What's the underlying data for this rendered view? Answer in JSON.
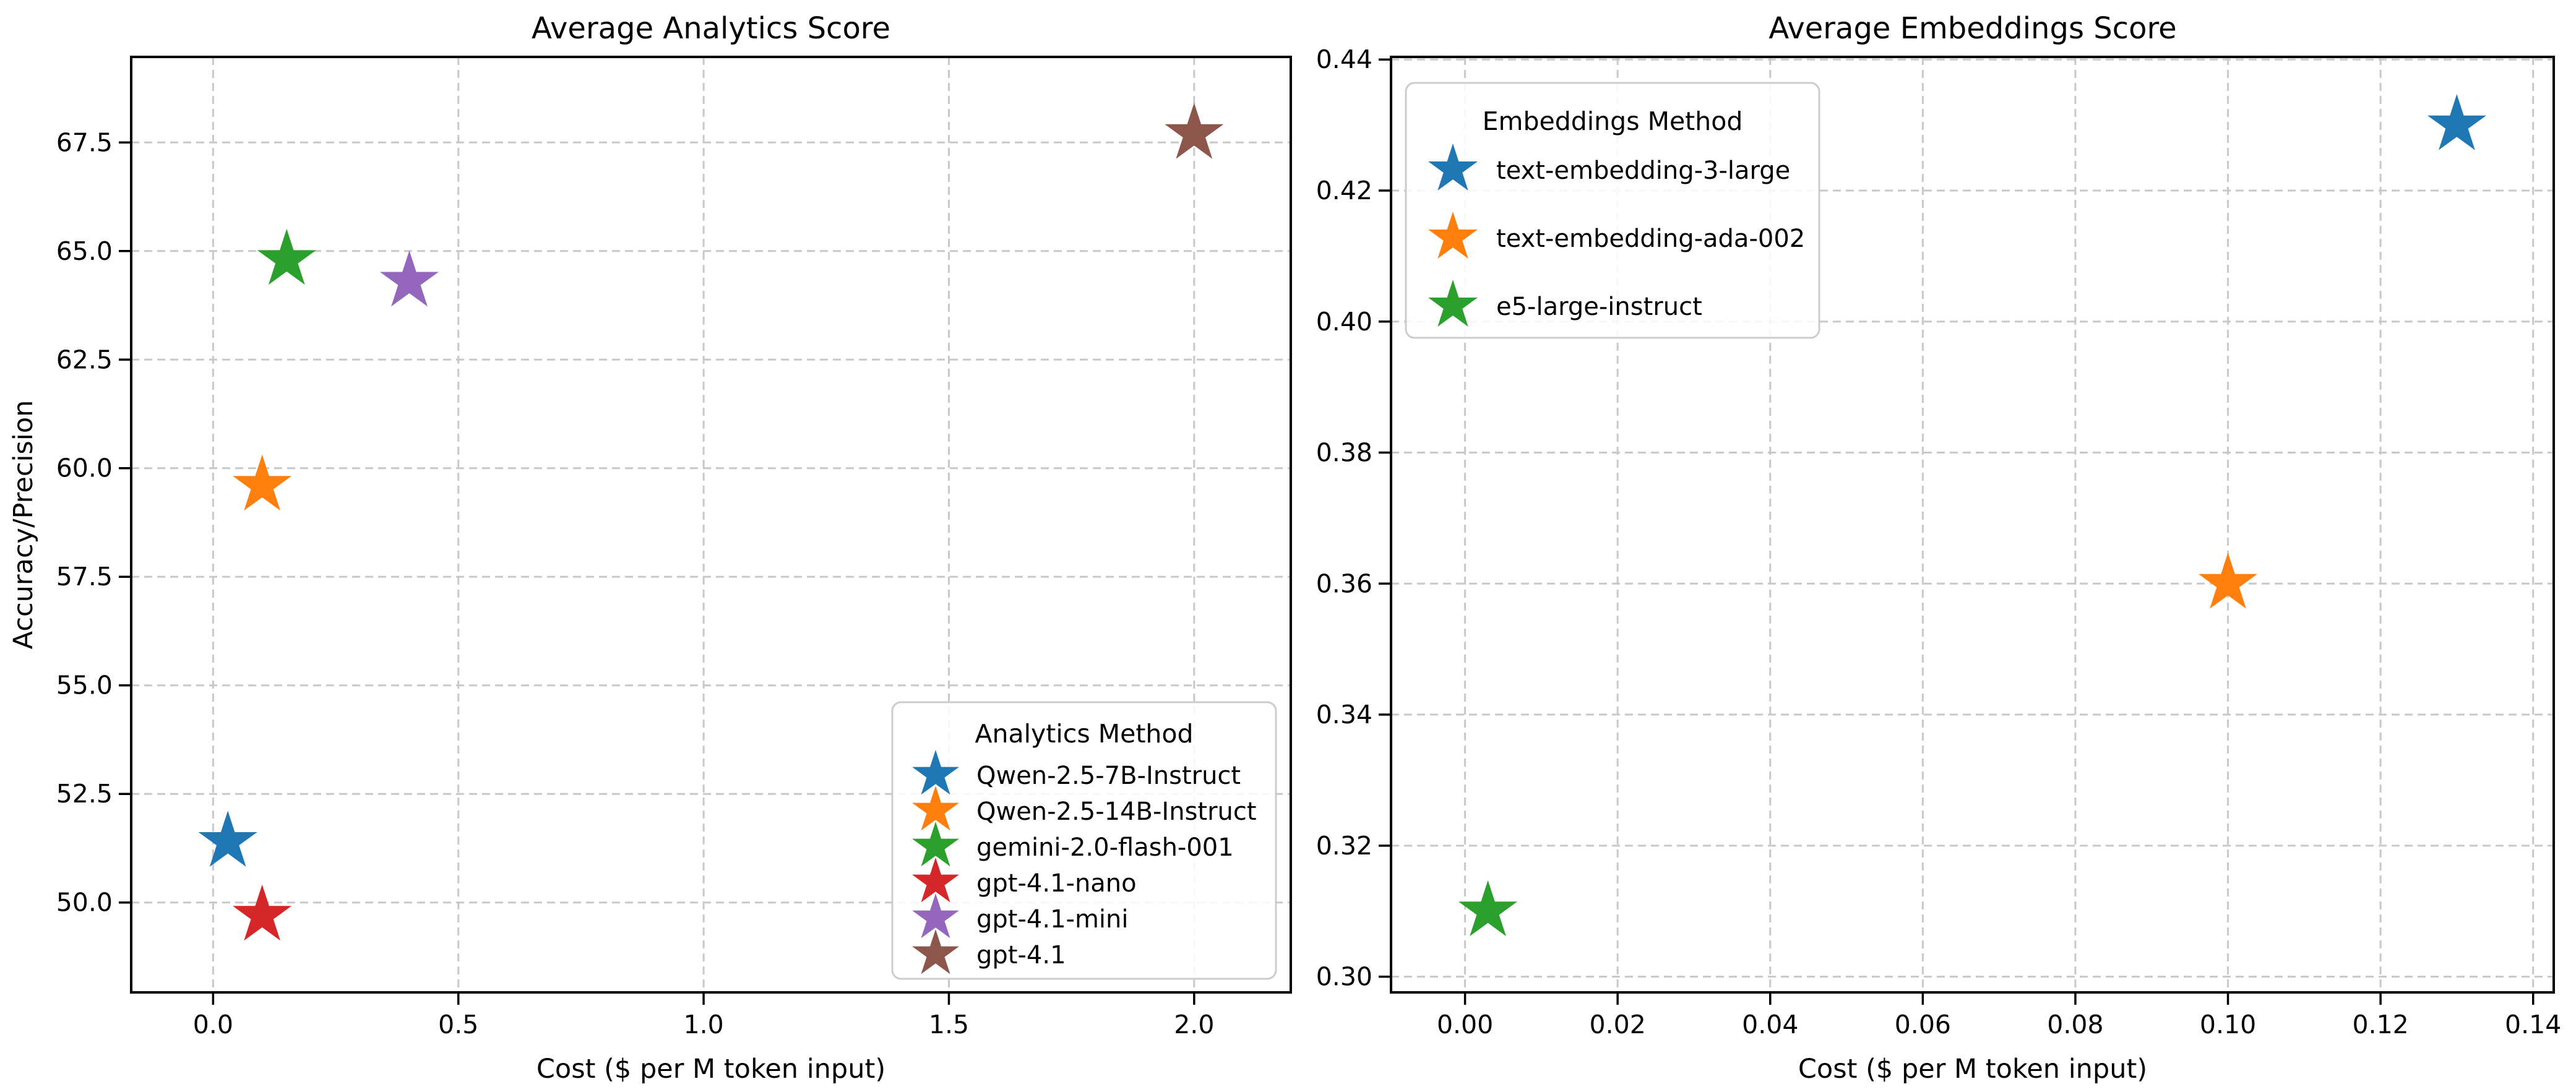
{
  "figure": {
    "background": "#ffffff",
    "grid_color": "#c8c8c8",
    "spine_color": "#000000"
  },
  "chart_data": [
    {
      "type": "scatter",
      "title": "Average Analytics Score",
      "xlabel": "Cost ($ per M token input)",
      "ylabel": "Accuracy/Precision",
      "xlim": [
        -0.167,
        2.197
      ],
      "ylim": [
        47.93,
        69.47
      ],
      "grid": true,
      "grid_style": "dashed",
      "marker": "star",
      "legend": {
        "title": "Analytics Method",
        "position": "lower right"
      },
      "xticks": {
        "values": [
          0.0,
          0.5,
          1.0,
          1.5,
          2.0
        ],
        "labels": [
          "0.0",
          "0.5",
          "1.0",
          "1.5",
          "2.0"
        ]
      },
      "yticks": {
        "values": [
          50.0,
          52.5,
          55.0,
          57.5,
          60.0,
          62.5,
          65.0,
          67.5
        ],
        "labels": [
          "50.0",
          "52.5",
          "55.0",
          "57.5",
          "60.0",
          "62.5",
          "65.0",
          "67.5"
        ]
      },
      "series": [
        {
          "name": "Qwen-2.5-7B-Instruct",
          "color": "#1f77b4",
          "points": [
            [
              0.03,
              51.4
            ]
          ]
        },
        {
          "name": "Qwen-2.5-14B-Instruct",
          "color": "#ff7f0e",
          "points": [
            [
              0.1,
              59.6
            ]
          ]
        },
        {
          "name": "gemini-2.0-flash-001",
          "color": "#2ca02c",
          "points": [
            [
              0.15,
              64.8
            ]
          ]
        },
        {
          "name": "gpt-4.1-nano",
          "color": "#d62728",
          "points": [
            [
              0.1,
              49.7
            ]
          ]
        },
        {
          "name": "gpt-4.1-mini",
          "color": "#9467bd",
          "points": [
            [
              0.4,
              64.3
            ]
          ]
        },
        {
          "name": "gpt-4.1",
          "color": "#8c564b",
          "points": [
            [
              2.0,
              67.7
            ]
          ]
        }
      ]
    },
    {
      "type": "scatter",
      "title": "Average Embeddings Score",
      "xlabel": "Cost ($ per M token input)",
      "ylabel": "",
      "xlim": [
        -0.0097,
        0.1427
      ],
      "ylim": [
        0.2976,
        0.4404
      ],
      "grid": true,
      "grid_style": "dashed",
      "marker": "star",
      "legend": {
        "title": "Embeddings Method",
        "position": "upper left"
      },
      "xticks": {
        "values": [
          0.0,
          0.02,
          0.04,
          0.06,
          0.08,
          0.1,
          0.12,
          0.14
        ],
        "labels": [
          "0.00",
          "0.02",
          "0.04",
          "0.06",
          "0.08",
          "0.10",
          "0.12",
          "0.14"
        ]
      },
      "yticks": {
        "values": [
          0.3,
          0.32,
          0.34,
          0.36,
          0.38,
          0.4,
          0.42,
          0.44
        ],
        "labels": [
          "0.30",
          "0.32",
          "0.34",
          "0.36",
          "0.38",
          "0.40",
          "0.42",
          "0.44"
        ]
      },
      "series": [
        {
          "name": "text-embedding-3-large",
          "color": "#1f77b4",
          "points": [
            [
              0.13,
              0.43
            ]
          ]
        },
        {
          "name": "text-embedding-ada-002",
          "color": "#ff7f0e",
          "points": [
            [
              0.1,
              0.36
            ]
          ]
        },
        {
          "name": "e5-large-instruct",
          "color": "#2ca02c",
          "points": [
            [
              0.003,
              0.31
            ]
          ]
        }
      ]
    }
  ]
}
